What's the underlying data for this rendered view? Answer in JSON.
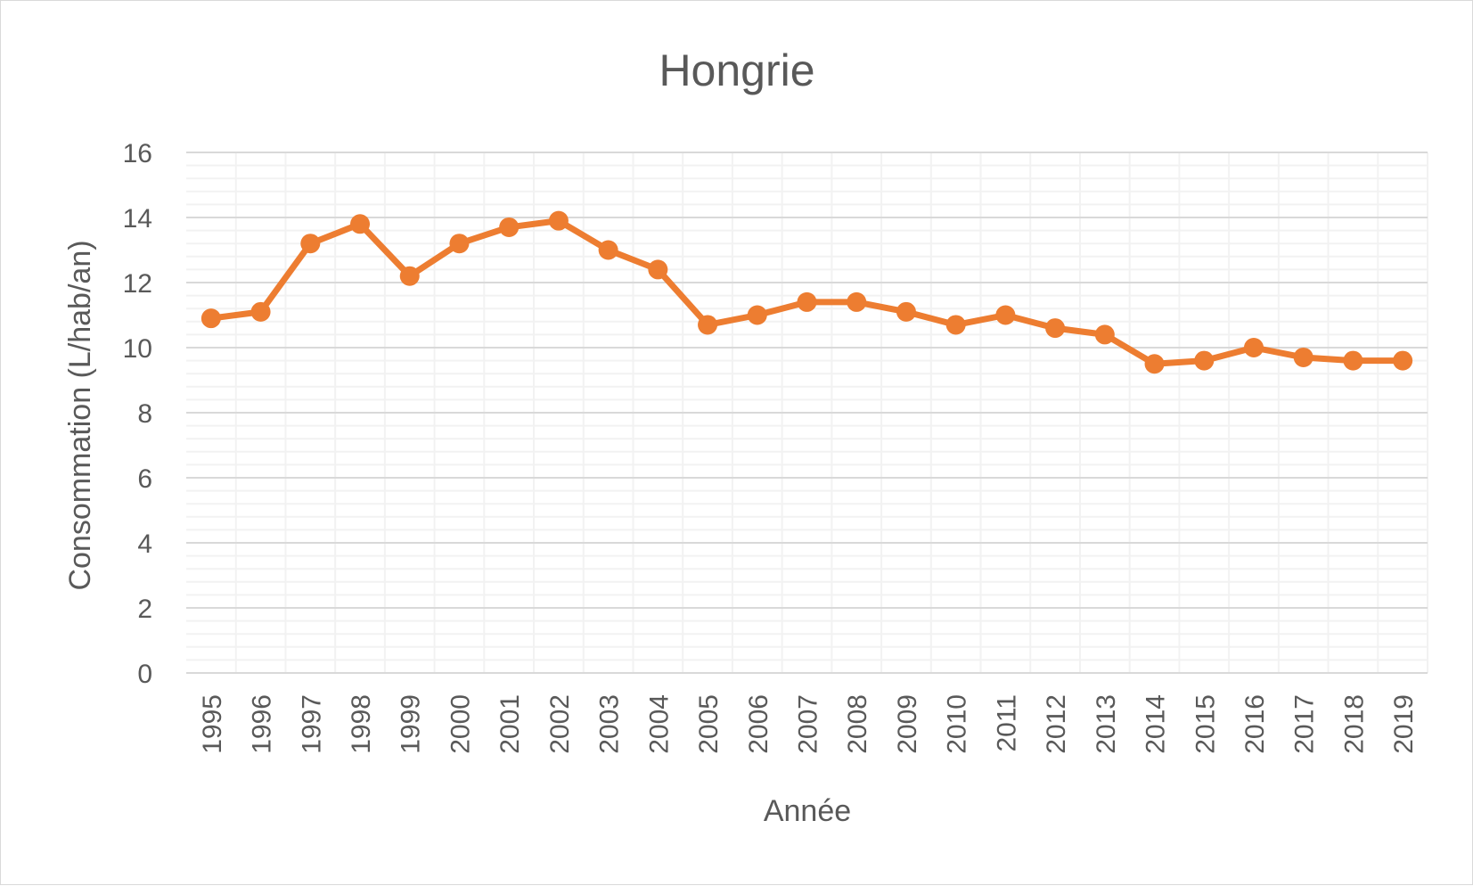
{
  "chart_data": {
    "type": "line",
    "title": "Hongrie",
    "xlabel": "Année",
    "ylabel": "Consommation (L/hab/an)",
    "ylim": [
      0,
      16
    ],
    "y_major_step": 2,
    "y_minor_step": 0.4,
    "y_ticks": [
      "0",
      "2",
      "4",
      "6",
      "8",
      "10",
      "12",
      "14",
      "16"
    ],
    "grid": true,
    "legend": "none",
    "x": [
      "1995",
      "1996",
      "1997",
      "1998",
      "1999",
      "2000",
      "2001",
      "2002",
      "2003",
      "2004",
      "2005",
      "2006",
      "2007",
      "2008",
      "2009",
      "2010",
      "2011",
      "2012",
      "2013",
      "2014",
      "2015",
      "2016",
      "2017",
      "2018",
      "2019"
    ],
    "series": [
      {
        "color": "#ed7d31",
        "values": [
          10.9,
          11.1,
          13.2,
          13.8,
          12.2,
          13.2,
          13.7,
          13.9,
          13.0,
          12.4,
          10.7,
          11.0,
          11.4,
          11.4,
          11.1,
          10.7,
          11.0,
          10.6,
          10.4,
          9.5,
          9.6,
          10.0,
          9.7,
          9.6,
          9.6
        ]
      }
    ],
    "colors": {
      "major_grid": "#d9d9d9",
      "minor_grid": "#f2f2f2",
      "text": "#595959"
    }
  }
}
